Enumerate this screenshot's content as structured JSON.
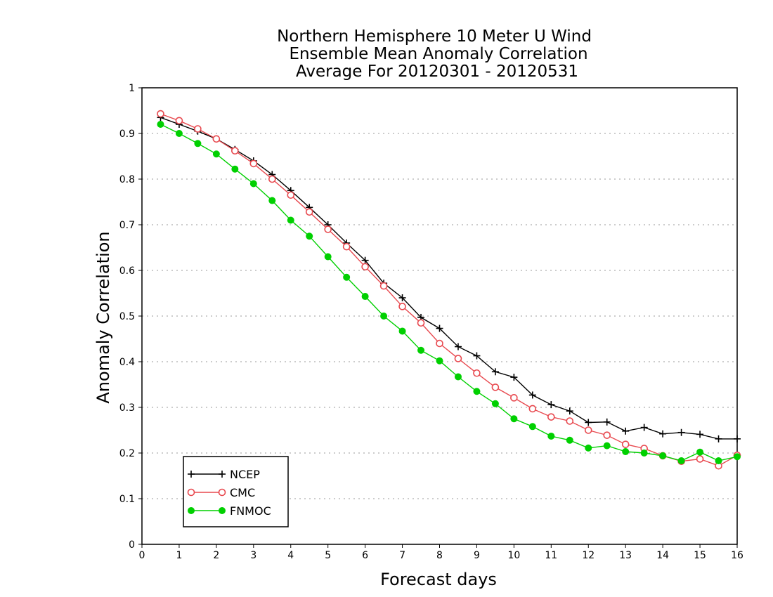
{
  "chart_data": {
    "type": "line",
    "title_lines": [
      "Northern Hemisphere 10 Meter U Wind",
      "Ensemble Mean Anomaly Correlation",
      "Average For 20120301 - 20120531"
    ],
    "xlabel": "Forecast days",
    "ylabel": "Anomaly Correlation",
    "xlim": [
      0,
      16
    ],
    "ylim": [
      0,
      1
    ],
    "x_ticks": [
      "0",
      "1",
      "2",
      "3",
      "4",
      "5",
      "6",
      "7",
      "8",
      "9",
      "10",
      "11",
      "12",
      "13",
      "14",
      "15",
      "16"
    ],
    "y_ticks": [
      "0",
      "0.1",
      "0.2",
      "0.3",
      "0.4",
      "0.5",
      "0.6",
      "0.7",
      "0.8",
      "0.9",
      "1"
    ],
    "grid": "horizontal dotted",
    "legend_position": "bottom-left",
    "x": [
      0.5,
      1,
      1.5,
      2,
      2.5,
      3,
      3.5,
      4,
      4.5,
      5,
      5.5,
      6,
      6.5,
      7,
      7.5,
      8,
      8.5,
      9,
      9.5,
      10,
      10.5,
      11,
      11.5,
      12,
      12.5,
      13,
      13.5,
      14,
      14.5,
      15,
      15.5,
      16
    ],
    "series": [
      {
        "name": "NCEP",
        "color": "#000000",
        "marker": "plus",
        "values": [
          0.935,
          0.92,
          0.905,
          0.888,
          0.865,
          0.84,
          0.81,
          0.775,
          0.738,
          0.7,
          0.66,
          0.622,
          0.572,
          0.54,
          0.497,
          0.473,
          0.433,
          0.413,
          0.378,
          0.366,
          0.327,
          0.306,
          0.292,
          0.267,
          0.268,
          0.248,
          0.256,
          0.242,
          0.245,
          0.241,
          0.231,
          0.231
        ]
      },
      {
        "name": "CMC",
        "color": "#e8494f",
        "marker": "open-circle",
        "values": [
          0.943,
          0.928,
          0.91,
          0.888,
          0.862,
          0.834,
          0.8,
          0.765,
          0.728,
          0.69,
          0.652,
          0.608,
          0.566,
          0.521,
          0.485,
          0.44,
          0.407,
          0.375,
          0.344,
          0.321,
          0.297,
          0.279,
          0.27,
          0.25,
          0.239,
          0.219,
          0.21,
          0.194,
          0.182,
          0.187,
          0.172,
          0.195
        ]
      },
      {
        "name": "FNMOC",
        "color": "#00d000",
        "marker": "filled-circle",
        "values": [
          0.92,
          0.9,
          0.878,
          0.855,
          0.822,
          0.79,
          0.753,
          0.71,
          0.675,
          0.63,
          0.585,
          0.543,
          0.5,
          0.467,
          0.425,
          0.402,
          0.367,
          0.335,
          0.308,
          0.275,
          0.258,
          0.237,
          0.228,
          0.211,
          0.216,
          0.203,
          0.2,
          0.194,
          0.183,
          0.202,
          0.183,
          0.192
        ]
      }
    ]
  }
}
